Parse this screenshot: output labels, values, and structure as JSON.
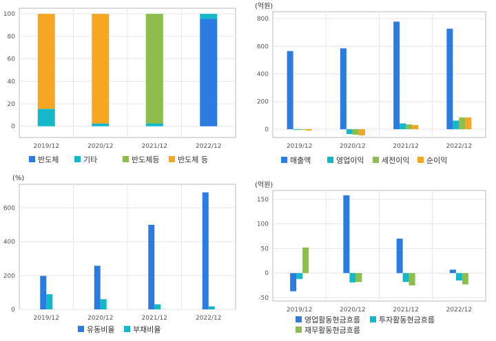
{
  "colors": {
    "blue": "#2b7be0",
    "teal": "#14b8c8",
    "green": "#8dbd4a",
    "orange": "#f5a623",
    "grid": "#e6e6e6",
    "axis": "#b9b9b9",
    "text": "#555555"
  },
  "chart_data": [
    {
      "id": "composition",
      "type": "bar",
      "stacked": true,
      "categories": [
        "2019/12",
        "2020/12",
        "2021/12",
        "2022/12"
      ],
      "ylim": [
        -10,
        105
      ],
      "yticks": [
        0,
        20,
        40,
        60,
        80,
        100
      ],
      "unit_label": "",
      "grid": true,
      "legend_position": "bottom",
      "series": [
        {
          "name": "반도체",
          "color": "#2b7be0",
          "values": [
            0,
            0,
            0,
            95.5
          ]
        },
        {
          "name": "기타",
          "color": "#14b8c8",
          "values": [
            15.5,
            2.5,
            2.5,
            4.5
          ]
        },
        {
          "name": "반도체등",
          "color": "#8dbd4a",
          "values": [
            0,
            0,
            97.5,
            0
          ]
        },
        {
          "name": "반도체 등",
          "color": "#f5a623",
          "values": [
            84.5,
            97.5,
            0,
            0
          ]
        }
      ]
    },
    {
      "id": "income",
      "type": "bar",
      "stacked": false,
      "categories": [
        "2019/12",
        "2020/12",
        "2021/12",
        "2022/12"
      ],
      "ylim": [
        -60,
        850
      ],
      "yticks": [
        0,
        200,
        400,
        600,
        800
      ],
      "unit_label": "(억원)",
      "grid": true,
      "legend_position": "bottom",
      "series": [
        {
          "name": "매출액",
          "color": "#2b7be0",
          "values": [
            565,
            585,
            778,
            727
          ]
        },
        {
          "name": "영업이익",
          "color": "#14b8c8",
          "values": [
            -5,
            -35,
            42,
            62
          ]
        },
        {
          "name": "세전이익",
          "color": "#8dbd4a",
          "values": [
            -5,
            -40,
            35,
            85
          ]
        },
        {
          "name": "순이익",
          "color": "#f5a623",
          "values": [
            -10,
            -45,
            30,
            85
          ]
        }
      ]
    },
    {
      "id": "ratios",
      "type": "bar",
      "stacked": false,
      "categories": [
        "2019/12",
        "2020/12",
        "2021/12",
        "2022/12"
      ],
      "ylim": [
        0,
        740
      ],
      "yticks": [
        0,
        200,
        400,
        600
      ],
      "unit_label": "(%)",
      "grid": true,
      "legend_position": "bottom",
      "series": [
        {
          "name": "유동비율",
          "color": "#2b7be0",
          "values": [
            198,
            258,
            500,
            692
          ]
        },
        {
          "name": "부채비율",
          "color": "#14b8c8",
          "values": [
            90,
            60,
            30,
            18
          ]
        }
      ]
    },
    {
      "id": "cashflow",
      "type": "bar",
      "stacked": false,
      "categories": [
        "2019/12",
        "2020/12",
        "2021/12",
        "2022/12"
      ],
      "ylim": [
        -57,
        168
      ],
      "yticks": [
        -50,
        0,
        50,
        100,
        150
      ],
      "unit_label": "(억원)",
      "grid": true,
      "legend_position": "bottom",
      "series": [
        {
          "name": "영업활동현금흐름",
          "color": "#2b7be0",
          "values": [
            -37,
            158,
            70,
            7
          ]
        },
        {
          "name": "투자활동현금흐름",
          "color": "#14b8c8",
          "values": [
            -12,
            -19,
            -18,
            -15
          ]
        },
        {
          "name": "재무활동현금흐름",
          "color": "#8dbd4a",
          "values": [
            52,
            -18,
            -25,
            -23
          ]
        }
      ]
    }
  ]
}
